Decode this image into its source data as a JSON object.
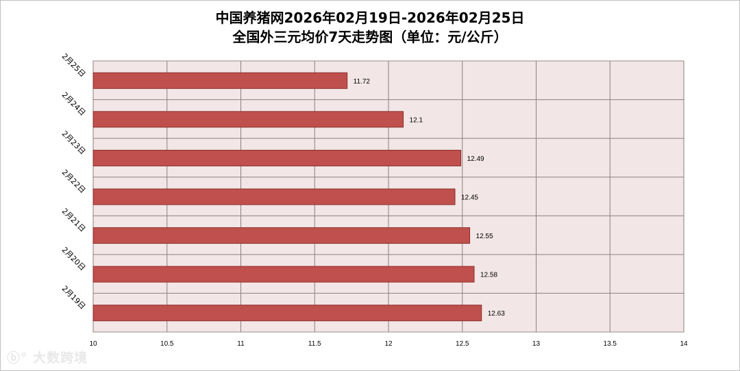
{
  "chart_data": {
    "type": "bar",
    "orientation": "horizontal",
    "title": "中国养猪网2026年02月19日-2026年02月25日",
    "subtitle": "全国外三元均价7天走势图（单位：元/公斤）",
    "categories": [
      "2月25日",
      "2月24日",
      "2月23日",
      "2月22日",
      "2月21日",
      "2月20日",
      "2月19日"
    ],
    "values": [
      11.72,
      12.1,
      12.49,
      12.45,
      12.55,
      12.58,
      12.63
    ],
    "value_labels": [
      "11.72",
      "12.1",
      "12.49",
      "12.45",
      "12.55",
      "12.58",
      "12.63"
    ],
    "xlim": [
      10,
      14
    ],
    "x_ticks": [
      "10",
      "10.5",
      "11",
      "11.5",
      "12",
      "12.5",
      "13",
      "13.5",
      "14"
    ],
    "grid": true,
    "bar_color": "#c0504d",
    "plot_background": "#f2e6e6"
  },
  "watermark": "大数跨境"
}
